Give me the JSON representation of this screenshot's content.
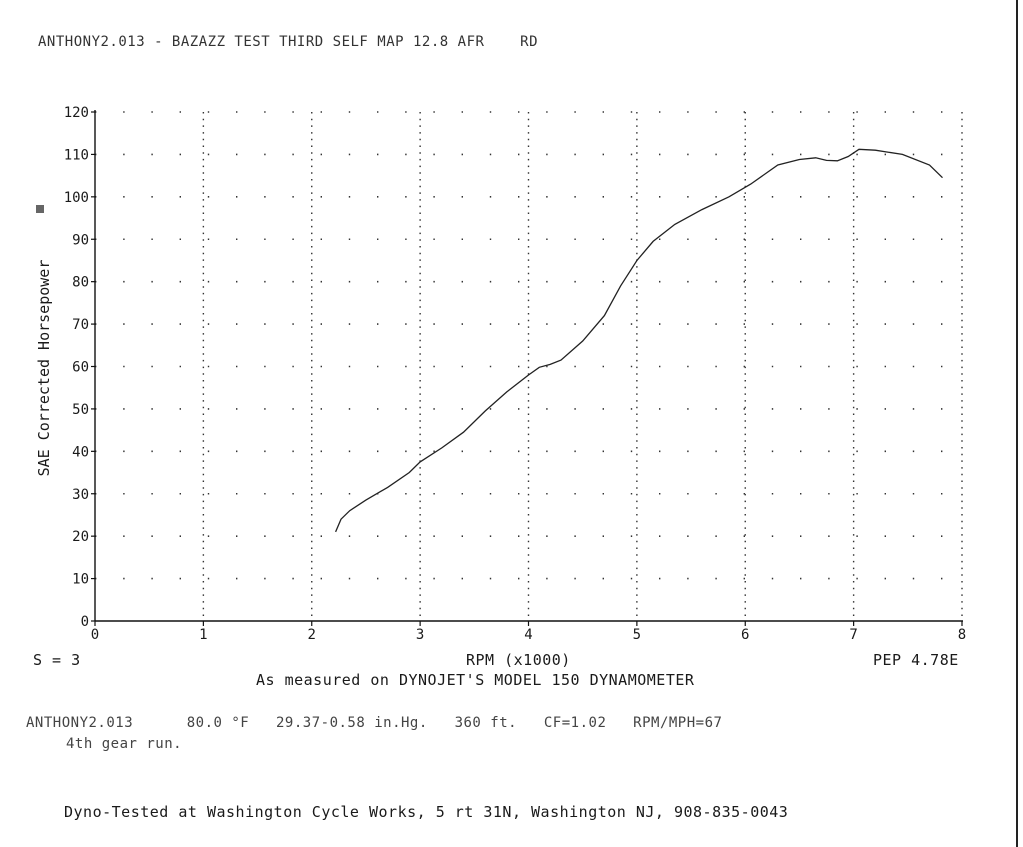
{
  "header": {
    "title": "ANTHONY2.013 - BAZAZZ TEST THIRD SELF MAP 12.8 AFR    RD"
  },
  "chart_data": {
    "type": "line",
    "xlabel": "RPM (x1000)",
    "ylabel": "SAE Corrected Horsepower",
    "xlim": [
      0,
      8
    ],
    "ylim": [
      0,
      120
    ],
    "x_ticks": [
      0,
      1,
      2,
      3,
      4,
      5,
      6,
      7,
      8
    ],
    "y_ticks": [
      0,
      10,
      20,
      30,
      40,
      50,
      60,
      70,
      80,
      90,
      100,
      110,
      120
    ],
    "grid": "dotted",
    "series": [
      {
        "x": [
          2.22,
          2.27,
          2.35,
          2.5,
          2.7,
          2.9,
          3.0,
          3.2,
          3.4,
          3.6,
          3.8,
          4.0,
          4.1,
          4.2,
          4.3,
          4.5,
          4.7,
          4.85,
          5.0,
          5.15,
          5.35,
          5.6,
          5.85,
          6.05,
          6.3,
          6.5,
          6.65,
          6.75,
          6.85,
          6.95,
          7.05,
          7.2,
          7.45,
          7.7,
          7.82
        ],
        "y": [
          21,
          24,
          26,
          28.5,
          31.5,
          35,
          37.5,
          40.8,
          44.5,
          49.5,
          54,
          58,
          59.8,
          60.5,
          61.5,
          66,
          72,
          79,
          85,
          89.5,
          93.5,
          97,
          100,
          103,
          107.5,
          108.8,
          109.2,
          108.6,
          108.5,
          109.5,
          111.2,
          111,
          110,
          107.5,
          104.5
        ]
      }
    ]
  },
  "info": {
    "smoothing": "S = 3",
    "peak": "PEP 4.78E",
    "measured": "As measured on DYNOJET'S MODEL 150 DYNAMOMETER",
    "conditions": "ANTHONY2.013      80.0 °F   29.37-0.58 in.Hg.   360 ft.   CF=1.02   RPM/MPH=67",
    "gear": "4th gear run."
  },
  "footer": {
    "text": "Dyno-Tested at Washington Cycle Works, 5 rt 31N, Washington NJ, 908-835-0043"
  }
}
